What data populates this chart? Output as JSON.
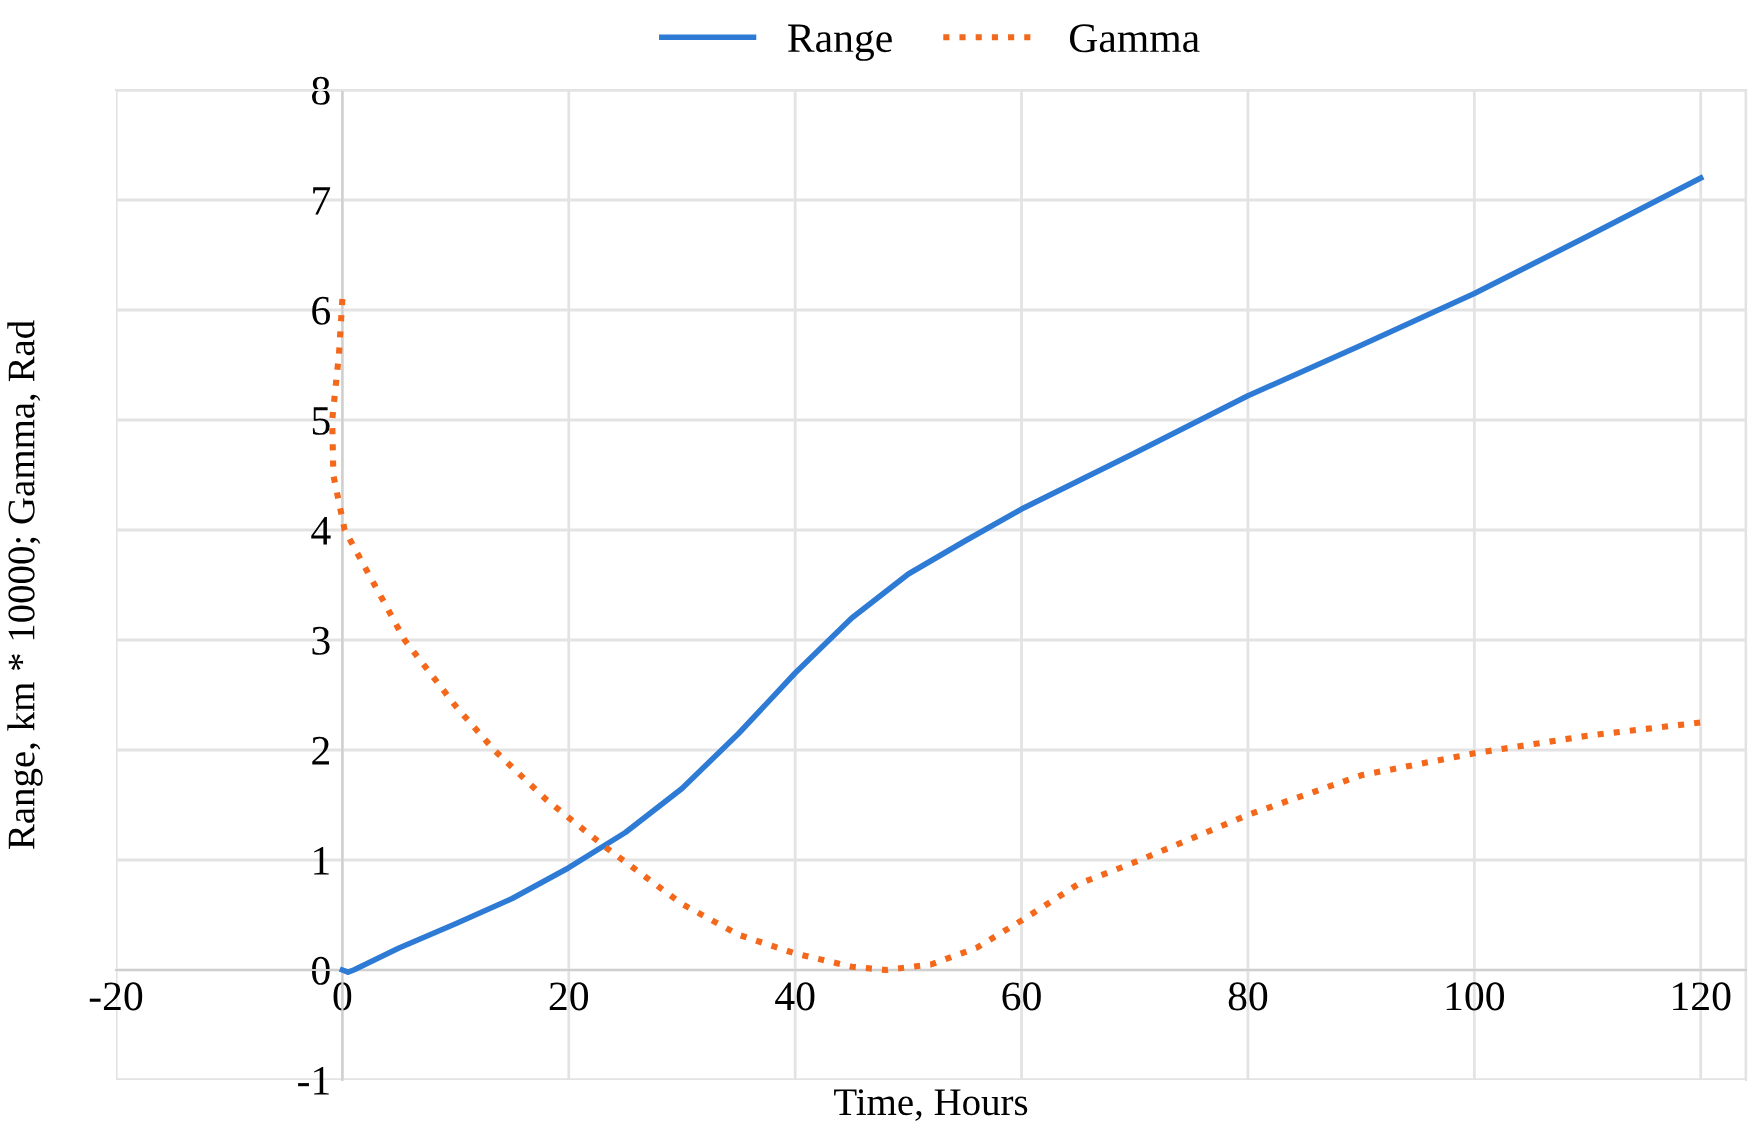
{
  "chart_data": {
    "type": "line",
    "xlabel": "Time, Hours",
    "ylabel": "Range, km * 10000; Gamma, Rad",
    "xlim": [
      -20,
      124
    ],
    "ylim": [
      -1,
      8
    ],
    "xticks": [
      -20,
      0,
      20,
      40,
      60,
      80,
      100,
      120
    ],
    "yticks": [
      -1,
      0,
      1,
      2,
      3,
      4,
      5,
      6,
      7,
      8
    ],
    "grid": true,
    "legend": "top",
    "marker": "none",
    "series": [
      {
        "name": "Range",
        "color": "#2e7bd6",
        "line_style": "solid",
        "x": [
          0,
          0.5,
          1,
          5,
          10,
          15,
          20,
          25,
          30,
          35,
          40,
          45,
          50,
          55,
          60,
          70,
          80,
          90,
          100,
          110,
          120
        ],
        "values": [
          0,
          -0.02,
          0,
          0.2,
          0.42,
          0.65,
          0.93,
          1.25,
          1.65,
          2.15,
          2.7,
          3.2,
          3.6,
          3.9,
          4.19,
          4.7,
          5.22,
          5.68,
          6.15,
          6.67,
          7.2
        ]
      },
      {
        "name": "Gamma",
        "color": "#f4681c",
        "line_style": "dotted",
        "x": [
          0,
          -0.3,
          -0.9,
          -0.8,
          -0.2,
          0.2,
          5.5,
          10,
          13.4,
          18,
          23.2,
          30,
          35,
          40,
          45,
          48,
          52,
          56,
          60,
          65,
          70,
          80,
          90,
          100,
          110,
          120
        ],
        "values": [
          6.1,
          5.6,
          5.0,
          4.5,
          4.2,
          4.0,
          3.0,
          2.4,
          2.0,
          1.55,
          1.12,
          0.6,
          0.32,
          0.15,
          0.03,
          0.0,
          0.05,
          0.2,
          0.45,
          0.78,
          0.98,
          1.41,
          1.77,
          1.97,
          2.13,
          2.25
        ]
      }
    ]
  }
}
